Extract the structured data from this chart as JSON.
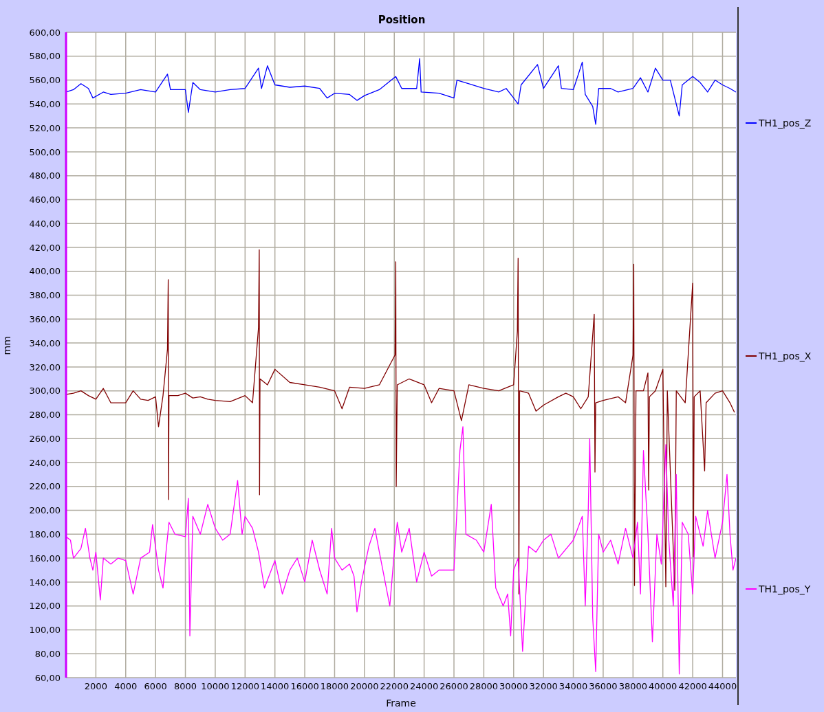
{
  "chart_data": {
    "type": "line",
    "title": "Position",
    "xlabel": "Frame",
    "ylabel": "mm",
    "xlim": [
      0,
      44900
    ],
    "xticks": [
      2000,
      4000,
      6000,
      8000,
      10000,
      12000,
      14000,
      16000,
      18000,
      20000,
      22000,
      24000,
      26000,
      28000,
      30000,
      32000,
      34000,
      36000,
      38000,
      40000,
      42000,
      44000
    ],
    "ylim": [
      60,
      600
    ],
    "yticks": [
      {
        "value": 60,
        "label": "60,00"
      },
      {
        "value": 80,
        "label": "80,00"
      },
      {
        "value": 100,
        "label": "100,00"
      },
      {
        "value": 120,
        "label": "120,00"
      },
      {
        "value": 140,
        "label": "140,00"
      },
      {
        "value": 160,
        "label": "160,00"
      },
      {
        "value": 180,
        "label": "180,00"
      },
      {
        "value": 200,
        "label": "200,00"
      },
      {
        "value": 220,
        "label": "220,00"
      },
      {
        "value": 240,
        "label": "240,00"
      },
      {
        "value": 260,
        "label": "260,00"
      },
      {
        "value": 280,
        "label": "280,00"
      },
      {
        "value": 300,
        "label": "300,00"
      },
      {
        "value": 320,
        "label": "320,00"
      },
      {
        "value": 340,
        "label": "340,00"
      },
      {
        "value": 360,
        "label": "360,00"
      },
      {
        "value": 380,
        "label": "380,00"
      },
      {
        "value": 400,
        "label": "400,00"
      },
      {
        "value": 420,
        "label": "420,00"
      },
      {
        "value": 440,
        "label": "440,00"
      },
      {
        "value": 460,
        "label": "460,00"
      },
      {
        "value": 480,
        "label": "480,00"
      },
      {
        "value": 500,
        "label": "500,00"
      },
      {
        "value": 520,
        "label": "520,00"
      },
      {
        "value": 540,
        "label": "540,00"
      },
      {
        "value": 560,
        "label": "560,00"
      },
      {
        "value": 580,
        "label": "580,00"
      },
      {
        "value": 600,
        "label": "600,00"
      }
    ],
    "grid": true,
    "legend": "right",
    "marker": "none",
    "line_style": "solid",
    "series": [
      {
        "name": "TH1_pos_Z",
        "color": "#0000ff",
        "x": [
          0,
          500,
          1000,
          1500,
          1800,
          2500,
          3000,
          4000,
          5000,
          6000,
          6800,
          7000,
          8000,
          8200,
          8500,
          9000,
          10000,
          11000,
          12000,
          12900,
          13100,
          13500,
          14000,
          15000,
          16000,
          17000,
          17500,
          18000,
          19000,
          19500,
          20000,
          21000,
          22100,
          22500,
          23500,
          23700,
          23800,
          25000,
          26000,
          26200,
          27000,
          28000,
          29000,
          29500,
          30000,
          30300,
          30500,
          31600,
          32000,
          33000,
          33200,
          34000,
          34600,
          34800,
          35300,
          35500,
          35700,
          36500,
          37000,
          38000,
          38500,
          39000,
          39500,
          40000,
          40500,
          41100,
          41300,
          42000,
          42500,
          43000,
          43500,
          44000,
          44500,
          44900
        ],
        "values": [
          550,
          552,
          557,
          553,
          545,
          550,
          548,
          549,
          552,
          550,
          565,
          552,
          552,
          533,
          558,
          552,
          550,
          552,
          553,
          570,
          553,
          572,
          556,
          554,
          555,
          553,
          545,
          549,
          548,
          543,
          547,
          552,
          563,
          553,
          553,
          578,
          550,
          549,
          545,
          560,
          557,
          553,
          550,
          553,
          545,
          540,
          556,
          573,
          553,
          572,
          553,
          552,
          575,
          548,
          538,
          523,
          553,
          553,
          550,
          553,
          562,
          550,
          570,
          560,
          560,
          530,
          556,
          563,
          558,
          550,
          560,
          556,
          553,
          550
        ]
      },
      {
        "name": "TH1_pos_X",
        "color": "#800000",
        "x": [
          0,
          500,
          1000,
          1500,
          2000,
          2500,
          3000,
          4000,
          4500,
          5000,
          5500,
          6000,
          6200,
          6500,
          6800,
          6850,
          6870,
          6900,
          7500,
          8000,
          8500,
          9000,
          9500,
          10000,
          11000,
          12000,
          12500,
          12900,
          12950,
          12970,
          13000,
          13500,
          14000,
          15000,
          16000,
          17000,
          18000,
          18500,
          19000,
          20000,
          21000,
          22050,
          22100,
          22130,
          22200,
          23000,
          24000,
          24500,
          25000,
          26000,
          26500,
          27000,
          28000,
          29000,
          30000,
          30250,
          30300,
          30350,
          30400,
          31000,
          31500,
          32000,
          33000,
          33500,
          34000,
          34500,
          35000,
          35400,
          35450,
          35500,
          36000,
          37000,
          37500,
          38000,
          38050,
          38100,
          38200,
          38700,
          39000,
          39050,
          39100,
          39500,
          40000,
          40200,
          40300,
          40800,
          40900,
          41500,
          42000,
          42050,
          42100,
          42500,
          42800,
          42900,
          43500,
          44000,
          44500,
          44800
        ],
        "values": [
          297,
          298,
          300,
          296,
          293,
          302,
          290,
          290,
          300,
          293,
          292,
          295,
          270,
          296,
          335,
          393,
          209,
          296,
          296,
          298,
          294,
          295,
          293,
          292,
          291,
          296,
          290,
          353,
          418,
          213,
          310,
          305,
          318,
          307,
          305,
          303,
          300,
          285,
          303,
          302,
          305,
          330,
          408,
          220,
          305,
          310,
          305,
          290,
          302,
          300,
          275,
          305,
          302,
          300,
          305,
          350,
          411,
          130,
          300,
          298,
          283,
          288,
          295,
          298,
          295,
          285,
          295,
          364,
          232,
          290,
          292,
          295,
          290,
          330,
          406,
          137,
          300,
          300,
          315,
          217,
          295,
          300,
          318,
          136,
          300,
          133,
          300,
          290,
          390,
          161,
          295,
          300,
          233,
          290,
          298,
          300,
          290,
          282
        ]
      },
      {
        "name": "TH1_pos_Y",
        "color": "#ff00ff",
        "x": [
          0,
          300,
          500,
          1000,
          1300,
          1600,
          1800,
          2000,
          2300,
          2500,
          3000,
          3500,
          4000,
          4500,
          5000,
          5600,
          5800,
          6200,
          6500,
          6700,
          6900,
          7300,
          8000,
          8200,
          8300,
          8500,
          9000,
          9500,
          10000,
          10500,
          11000,
          11500,
          11800,
          12000,
          12500,
          12900,
          13100,
          13300,
          14000,
          14500,
          15000,
          15500,
          16000,
          16500,
          17000,
          17500,
          17800,
          18000,
          18500,
          19000,
          19300,
          19500,
          19800,
          20300,
          20700,
          21000,
          21700,
          22000,
          22200,
          22500,
          23000,
          23500,
          24000,
          24500,
          25000,
          25500,
          26000,
          26100,
          26400,
          26600,
          26800,
          27500,
          28000,
          28500,
          28800,
          29300,
          29600,
          29800,
          30000,
          30300,
          30600,
          31000,
          31500,
          32000,
          32500,
          33000,
          34000,
          34600,
          34800,
          35000,
          35100,
          35300,
          35500,
          35700,
          36000,
          36500,
          37000,
          37500,
          38000,
          38300,
          38500,
          38700,
          39000,
          39300,
          39600,
          39900,
          40200,
          40400,
          40700,
          40900,
          41100,
          41300,
          41700,
          42000,
          42200,
          42700,
          43000,
          43500,
          44000,
          44300,
          44500,
          44700,
          44900
        ],
        "values": [
          178,
          175,
          160,
          168,
          185,
          160,
          150,
          165,
          125,
          160,
          155,
          160,
          158,
          130,
          160,
          165,
          188,
          150,
          135,
          165,
          190,
          180,
          178,
          210,
          95,
          195,
          180,
          205,
          185,
          175,
          180,
          225,
          180,
          195,
          185,
          165,
          150,
          135,
          158,
          130,
          150,
          160,
          140,
          175,
          150,
          130,
          185,
          160,
          150,
          155,
          145,
          115,
          140,
          170,
          185,
          165,
          120,
          165,
          190,
          165,
          185,
          140,
          165,
          145,
          150,
          150,
          150,
          175,
          250,
          270,
          180,
          175,
          165,
          205,
          135,
          120,
          130,
          95,
          150,
          160,
          82,
          170,
          165,
          175,
          180,
          160,
          175,
          195,
          120,
          200,
          260,
          110,
          65,
          180,
          165,
          175,
          155,
          185,
          160,
          190,
          130,
          250,
          180,
          90,
          180,
          155,
          255,
          175,
          120,
          230,
          63,
          190,
          180,
          130,
          195,
          170,
          200,
          160,
          190,
          230,
          180,
          150,
          160
        ]
      }
    ]
  }
}
